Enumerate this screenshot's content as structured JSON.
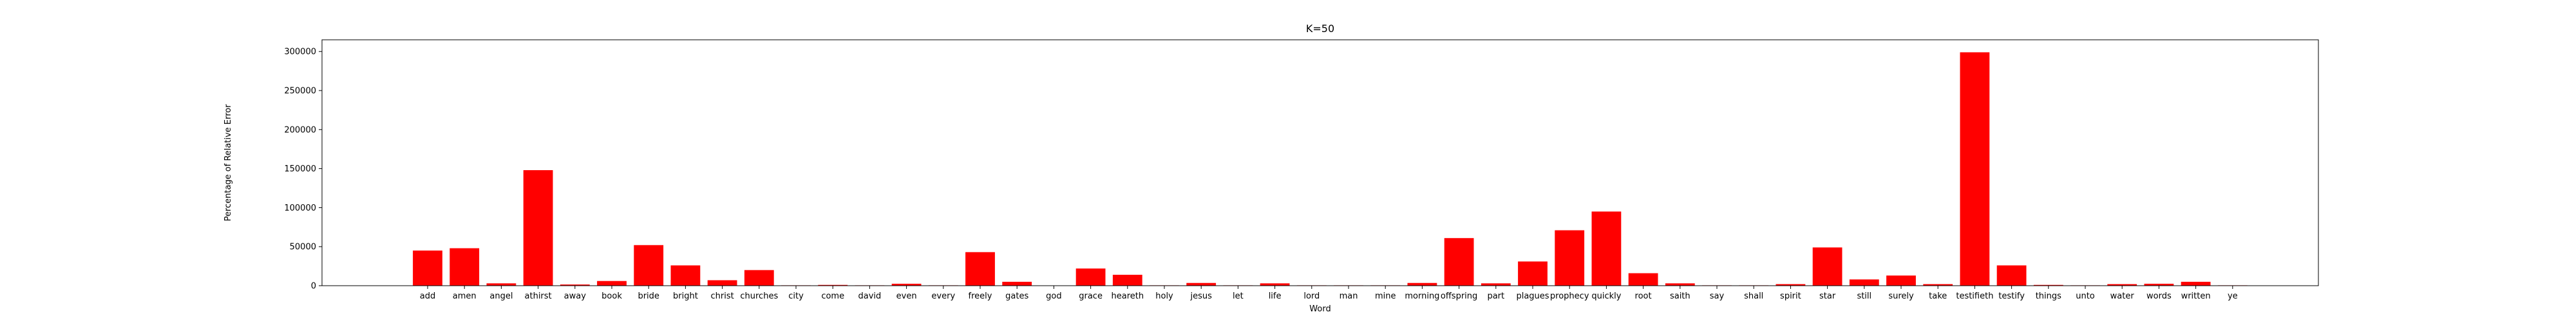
{
  "chart_data": {
    "type": "bar",
    "title": "K=50",
    "xlabel": "Word",
    "ylabel": "Percentage of Relative Error",
    "ylim": [
      0,
      315000
    ],
    "yticks": [
      0,
      50000,
      100000,
      150000,
      200000,
      250000,
      300000
    ],
    "grid": false,
    "bar_color": "#ff0000",
    "categories": [
      "add",
      "amen",
      "angel",
      "athirst",
      "away",
      "book",
      "bride",
      "bright",
      "christ",
      "churches",
      "city",
      "come",
      "david",
      "even",
      "every",
      "freely",
      "gates",
      "god",
      "grace",
      "heareth",
      "holy",
      "jesus",
      "let",
      "life",
      "lord",
      "man",
      "mine",
      "morning",
      "offspring",
      "part",
      "plagues",
      "prophecy",
      "quickly",
      "root",
      "saith",
      "say",
      "shall",
      "spirit",
      "star",
      "still",
      "surely",
      "take",
      "testifieth",
      "testify",
      "things",
      "unto",
      "water",
      "words",
      "written",
      "ye"
    ],
    "values": [
      45000,
      48000,
      3000,
      148000,
      1500,
      6000,
      52000,
      26000,
      7000,
      20000,
      500,
      1000,
      500,
      2500,
      500,
      43000,
      5000,
      0,
      22000,
      14000,
      500,
      3500,
      500,
      3000,
      500,
      500,
      500,
      3500,
      61000,
      3000,
      31000,
      71000,
      95000,
      16000,
      3000,
      500,
      500,
      2000,
      49000,
      8000,
      13000,
      2000,
      299000,
      26000,
      1000,
      500,
      2000,
      2500,
      5000,
      500
    ]
  }
}
